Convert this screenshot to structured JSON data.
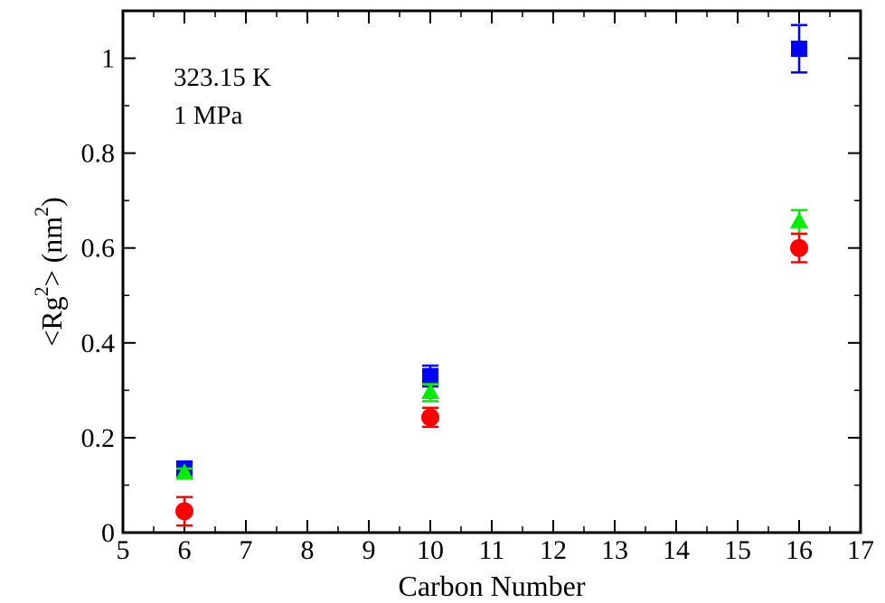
{
  "chart_data": {
    "type": "scatter",
    "title": "",
    "xlabel": "Carbon Number",
    "ylabel_main": "<Rg",
    "ylabel_sup": "2",
    "ylabel_mid": "> (nm",
    "ylabel_end": ")",
    "xlim": [
      5,
      17
    ],
    "ylim": [
      0,
      1.1
    ],
    "x_ticks": [
      "5",
      "6",
      "7",
      "8",
      "9",
      "10",
      "11",
      "12",
      "13",
      "14",
      "15",
      "16",
      "17"
    ],
    "y_ticks": [
      "0",
      "0.2",
      "0.4",
      "0.6",
      "0.8",
      "1"
    ],
    "grid": false,
    "annotations": [
      "323.15 K",
      "1 MPa"
    ],
    "series": [
      {
        "marker": "square",
        "color": "#0000ff",
        "points": [
          {
            "x": 6,
            "y": 0.135,
            "err": 0.012
          },
          {
            "x": 10,
            "y": 0.33,
            "err": 0.022
          },
          {
            "x": 16,
            "y": 1.02,
            "err": 0.05
          }
        ]
      },
      {
        "marker": "triangle",
        "color": "#00ee00",
        "points": [
          {
            "x": 6,
            "y": 0.125,
            "err": 0.01
          },
          {
            "x": 10,
            "y": 0.295,
            "err": 0.018
          },
          {
            "x": 16,
            "y": 0.655,
            "err": 0.025
          }
        ]
      },
      {
        "marker": "circle",
        "color": "#ff0000",
        "points": [
          {
            "x": 6,
            "y": 0.045,
            "err": 0.03
          },
          {
            "x": 10,
            "y": 0.243,
            "err": 0.02
          },
          {
            "x": 16,
            "y": 0.6,
            "err": 0.03
          }
        ]
      }
    ]
  }
}
